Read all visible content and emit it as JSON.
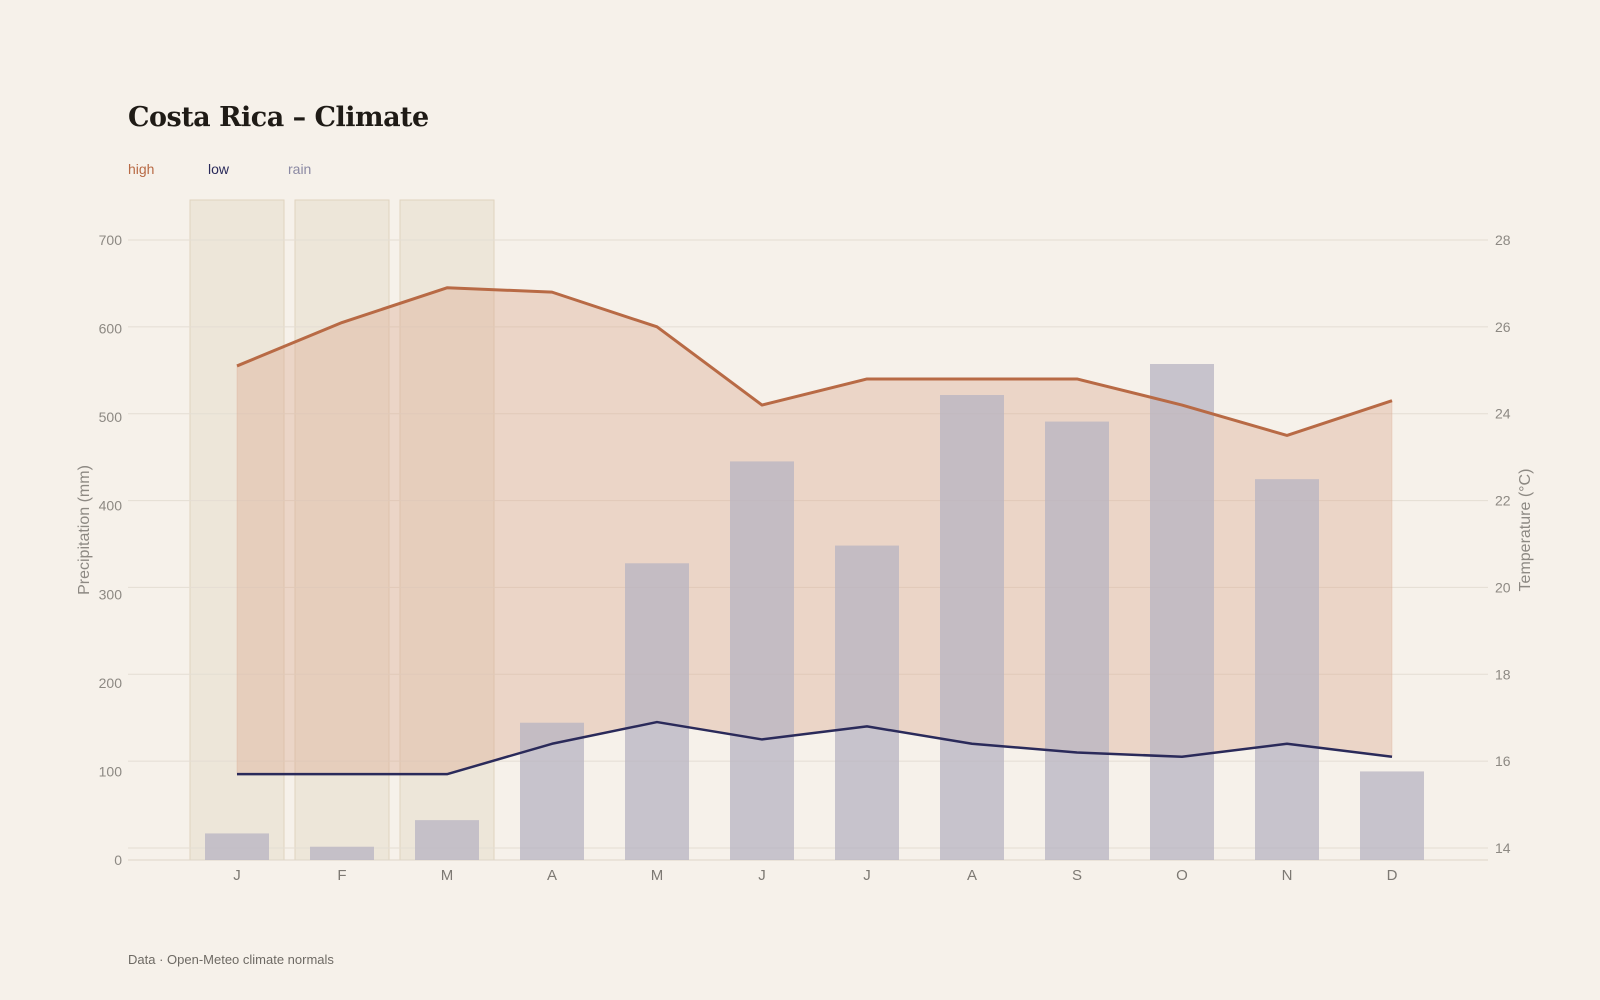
{
  "title": "Costa Rica – Climate",
  "footer": "Data · Open-Meteo climate normals",
  "legend": [
    {
      "label": "high",
      "color": "#b86a45"
    },
    {
      "label": "low",
      "color": "#2a2a5a"
    },
    {
      "label": "rain",
      "color": "#8b89a3"
    }
  ],
  "colors": {
    "high": "#b86a45",
    "low": "#2a2a5a",
    "band": "#d9a88e",
    "rain": "#b7b3c2",
    "highlight": "#e6dccb",
    "grid": "#e4ddd3"
  },
  "chart_data": {
    "type": "bar+line",
    "categories": [
      "J",
      "F",
      "M",
      "A",
      "M",
      "J",
      "J",
      "A",
      "S",
      "O",
      "N",
      "D"
    ],
    "highlighted_months": [
      0,
      1,
      2
    ],
    "series": [
      {
        "name": "rain",
        "axis": "left",
        "type": "bar",
        "values": [
          30,
          15,
          45,
          155,
          335,
          450,
          355,
          525,
          495,
          560,
          430,
          100
        ]
      },
      {
        "name": "high",
        "axis": "right",
        "type": "line",
        "values": [
          25.1,
          26.1,
          26.9,
          26.8,
          26.0,
          24.2,
          24.8,
          24.8,
          24.8,
          24.2,
          23.5,
          24.3
        ]
      },
      {
        "name": "low",
        "axis": "right",
        "type": "line",
        "values": [
          15.7,
          15.7,
          15.7,
          16.4,
          16.9,
          16.5,
          16.8,
          16.4,
          16.2,
          16.1,
          16.4,
          16.1
        ]
      }
    ],
    "y_left": {
      "label": "Precipitation (mm)",
      "ticks": [
        0,
        100,
        200,
        300,
        400,
        500,
        600,
        700
      ],
      "range": [
        0,
        700
      ]
    },
    "y_right": {
      "label": "Temperature (°C)",
      "ticks": [
        14,
        16,
        18,
        20,
        22,
        24,
        26,
        28
      ],
      "range": [
        14,
        28
      ]
    },
    "grid": true,
    "legend_position": "top-left"
  }
}
